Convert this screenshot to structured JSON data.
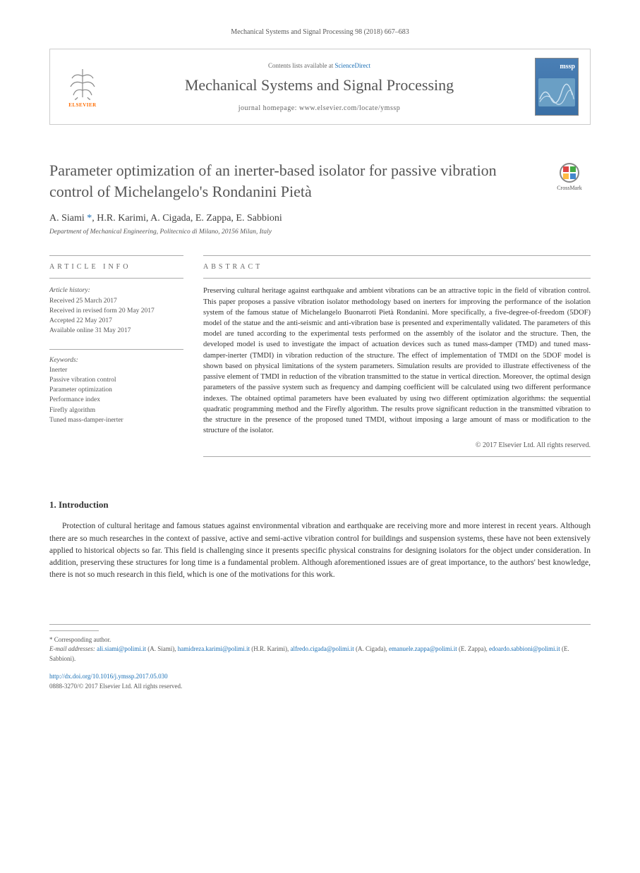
{
  "citation": "Mechanical Systems and Signal Processing 98 (2018) 667–683",
  "header": {
    "contents_prefix": "Contents lists available at ",
    "contents_link": "ScienceDirect",
    "journal_name": "Mechanical Systems and Signal Processing",
    "homepage_prefix": "journal homepage: ",
    "homepage_url": "www.elsevier.com/locate/ymssp",
    "publisher": "ELSEVIER",
    "cover_abbrev": "mssp"
  },
  "article": {
    "title": "Parameter optimization of an inerter-based isolator for passive vibration control of Michelangelo's Rondanini Pietà",
    "crossmark_label": "CrossMark",
    "authors_html": "A. Siami *, H.R. Karimi, A. Cigada, E. Zappa, E. Sabbioni",
    "corresponding_marker": "*",
    "affiliation": "Department of Mechanical Engineering, Politecnico di Milano, 20156 Milan, Italy"
  },
  "info": {
    "header": "ARTICLE INFO",
    "history_label": "Article history:",
    "received": "Received 25 March 2017",
    "revised": "Received in revised form 20 May 2017",
    "accepted": "Accepted 22 May 2017",
    "online": "Available online 31 May 2017",
    "keywords_label": "Keywords:",
    "keywords": [
      "Inerter",
      "Passive vibration control",
      "Parameter optimization",
      "Performance index",
      "Firefly algorithm",
      "Tuned mass-damper-inerter"
    ]
  },
  "abstract": {
    "header": "ABSTRACT",
    "text": "Preserving cultural heritage against earthquake and ambient vibrations can be an attractive topic in the field of vibration control. This paper proposes a passive vibration isolator methodology based on inerters for improving the performance of the isolation system of the famous statue of Michelangelo Buonarroti Pietà Rondanini. More specifically, a five-degree-of-freedom (5DOF) model of the statue and the anti-seismic and anti-vibration base is presented and experimentally validated. The parameters of this model are tuned according to the experimental tests performed on the assembly of the isolator and the structure. Then, the developed model is used to investigate the impact of actuation devices such as tuned mass-damper (TMD) and tuned mass-damper-inerter (TMDI) in vibration reduction of the structure. The effect of implementation of TMDI on the 5DOF model is shown based on physical limitations of the system parameters. Simulation results are provided to illustrate effectiveness of the passive element of TMDI in reduction of the vibration transmitted to the statue in vertical direction. Moreover, the optimal design parameters of the passive system such as frequency and damping coefficient will be calculated using two different performance indexes. The obtained optimal parameters have been evaluated by using two different optimization algorithms: the sequential quadratic programming method and the Firefly algorithm. The results prove significant reduction in the transmitted vibration to the structure in the presence of the proposed tuned TMDI, without imposing a large amount of mass or modification to the structure of the isolator.",
    "copyright": "© 2017 Elsevier Ltd. All rights reserved."
  },
  "introduction": {
    "heading": "1. Introduction",
    "paragraph": "Protection of cultural heritage and famous statues against environmental vibration and earthquake are receiving more and more interest in recent years. Although there are so much researches in the context of passive, active and semi-active vibration control for buildings and suspension systems, these have not been extensively applied to historical objects so far. This field is challenging since it presents specific physical constrains for designing isolators for the object under consideration. In addition, preserving these structures for long time is a fundamental problem. Although aforementioned issues are of great importance, to the authors' best knowledge, there is not so much research in this field, which is one of the motivations for this work."
  },
  "footer": {
    "corresponding_label": "* Corresponding author.",
    "emails_label": "E-mail addresses:",
    "emails": [
      {
        "addr": "ali.siami@polimi.it",
        "who": "(A. Siami)"
      },
      {
        "addr": "hamidreza.karimi@polimi.it",
        "who": "(H.R. Karimi)"
      },
      {
        "addr": "alfredo.cigada@polimi.it",
        "who": "(A. Cigada)"
      },
      {
        "addr": "emanuele.zappa@polimi.it",
        "who": "(E. Zappa)"
      },
      {
        "addr": "edoardo.sabbioni@polimi.it",
        "who": "(E. Sabbioni)"
      }
    ],
    "doi": "http://dx.doi.org/10.1016/j.ymssp.2017.05.030",
    "issn_copyright": "0888-3270/© 2017 Elsevier Ltd. All rights reserved."
  },
  "colors": {
    "link": "#1a6fb5",
    "orange": "#ff6c00",
    "text": "#333333",
    "muted": "#555555",
    "rule": "#aaaaaa",
    "cover_bg": "#4a7fb5"
  },
  "typography": {
    "title_fontsize": 22,
    "journal_name_fontsize": 22,
    "authors_fontsize": 14,
    "body_fontsize": 11.5,
    "abstract_fontsize": 10.5,
    "small_fontsize": 9.5,
    "footer_fontsize": 9
  }
}
